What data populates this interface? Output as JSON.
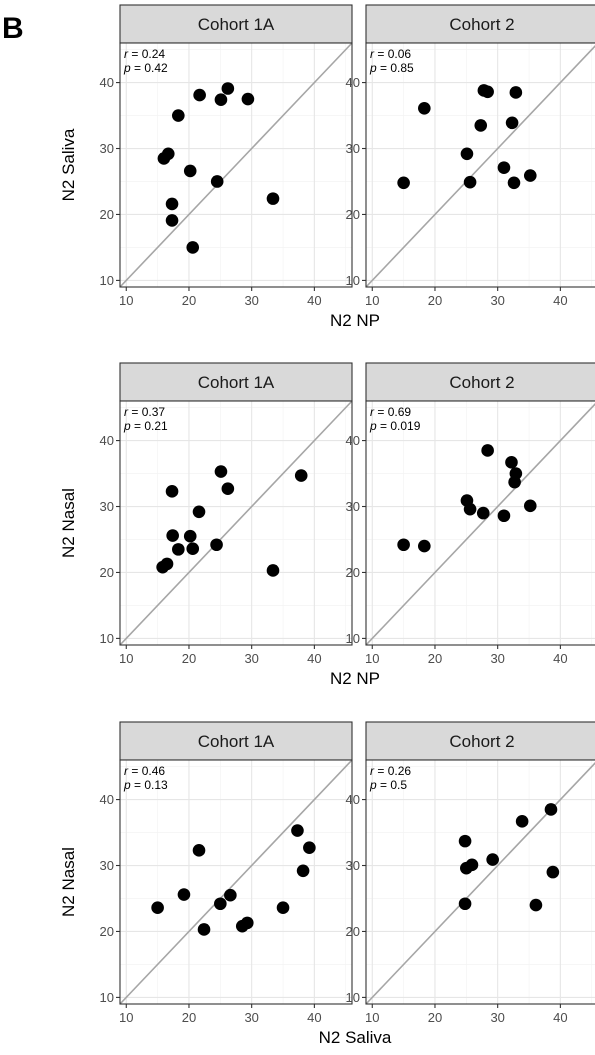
{
  "panel_letter": "B",
  "chart_data": [
    {
      "type": "scatter",
      "row": 1,
      "column": 1,
      "strip": "Cohort 1A",
      "stat_r_label": "r",
      "r": "0.24",
      "stat_p_label": "p",
      "p": "0.42",
      "xlabel": "N2 NP",
      "ylabel": "N2 Saliva",
      "xlim": [
        9,
        46
      ],
      "ylim": [
        9,
        46
      ],
      "xticks": [
        10,
        20,
        30,
        40
      ],
      "yticks": [
        10,
        20,
        30,
        40
      ],
      "reference_line": "y = x",
      "points": [
        [
          16,
          28.5
        ],
        [
          16.7,
          29.2
        ],
        [
          17.3,
          21.6
        ],
        [
          17.3,
          19.1
        ],
        [
          18.3,
          35
        ],
        [
          20.2,
          26.6
        ],
        [
          20.6,
          15
        ],
        [
          21.7,
          38.1
        ],
        [
          24.5,
          25
        ],
        [
          25.1,
          37.4
        ],
        [
          26.2,
          39.1
        ],
        [
          29.4,
          37.5
        ],
        [
          33.4,
          22.4
        ]
      ]
    },
    {
      "type": "scatter",
      "row": 1,
      "column": 2,
      "strip": "Cohort 2",
      "stat_r_label": "r",
      "r": "0.06",
      "stat_p_label": "p",
      "p": "0.85",
      "xlabel": "N2 NP",
      "ylabel": "N2 Saliva",
      "xlim": [
        9,
        46
      ],
      "ylim": [
        9,
        46
      ],
      "xticks": [
        10,
        20,
        30,
        40
      ],
      "yticks": [
        10,
        20,
        30,
        40
      ],
      "reference_line": "y = x",
      "points": [
        [
          15,
          24.8
        ],
        [
          18.3,
          36.1
        ],
        [
          25.1,
          29.2
        ],
        [
          25.6,
          24.9
        ],
        [
          27.3,
          33.5
        ],
        [
          27.8,
          38.8
        ],
        [
          28.4,
          38.6
        ],
        [
          31,
          27.1
        ],
        [
          32.3,
          33.9
        ],
        [
          32.6,
          24.8
        ],
        [
          32.9,
          38.5
        ],
        [
          35.2,
          25.9
        ]
      ]
    },
    {
      "type": "scatter",
      "row": 2,
      "column": 1,
      "strip": "Cohort 1A",
      "stat_r_label": "r",
      "r": "0.37",
      "stat_p_label": "p",
      "p": "0.21",
      "xlabel": "N2 NP",
      "ylabel": "N2 Nasal",
      "xlim": [
        9,
        46
      ],
      "ylim": [
        9,
        46
      ],
      "xticks": [
        10,
        20,
        30,
        40
      ],
      "yticks": [
        10,
        20,
        30,
        40
      ],
      "reference_line": "y = x",
      "points": [
        [
          15.8,
          20.8
        ],
        [
          16.5,
          21.3
        ],
        [
          17.3,
          32.3
        ],
        [
          17.4,
          25.6
        ],
        [
          18.3,
          23.5
        ],
        [
          20.2,
          25.5
        ],
        [
          20.6,
          23.6
        ],
        [
          21.6,
          29.2
        ],
        [
          24.4,
          24.2
        ],
        [
          25.1,
          35.3
        ],
        [
          26.2,
          32.7
        ],
        [
          33.4,
          20.3
        ],
        [
          37.9,
          34.7
        ]
      ]
    },
    {
      "type": "scatter",
      "row": 2,
      "column": 2,
      "strip": "Cohort 2",
      "stat_r_label": "r",
      "r": "0.69",
      "stat_p_label": "p",
      "p": "0.019",
      "xlabel": "N2 NP",
      "ylabel": "N2 Nasal",
      "xlim": [
        9,
        46
      ],
      "ylim": [
        9,
        46
      ],
      "xticks": [
        10,
        20,
        30,
        40
      ],
      "yticks": [
        10,
        20,
        30,
        40
      ],
      "reference_line": "y = x",
      "points": [
        [
          15,
          24.2
        ],
        [
          18.3,
          24
        ],
        [
          25.1,
          30.9
        ],
        [
          25.6,
          29.6
        ],
        [
          27.7,
          29
        ],
        [
          28.4,
          38.5
        ],
        [
          31,
          28.6
        ],
        [
          32.2,
          36.7
        ],
        [
          32.7,
          33.7
        ],
        [
          32.9,
          35
        ],
        [
          35.2,
          30.1
        ]
      ]
    },
    {
      "type": "scatter",
      "row": 3,
      "column": 1,
      "strip": "Cohort 1A",
      "stat_r_label": "r",
      "r": "0.46",
      "stat_p_label": "p",
      "p": "0.13",
      "xlabel": "N2 Saliva",
      "ylabel": "N2 Nasal",
      "xlim": [
        9,
        46
      ],
      "ylim": [
        9,
        46
      ],
      "xticks": [
        10,
        20,
        30,
        40
      ],
      "yticks": [
        10,
        20,
        30,
        40
      ],
      "reference_line": "y = x",
      "points": [
        [
          15,
          23.6
        ],
        [
          19.2,
          25.6
        ],
        [
          21.6,
          32.3
        ],
        [
          22.4,
          20.3
        ],
        [
          25,
          24.2
        ],
        [
          26.6,
          25.5
        ],
        [
          28.5,
          20.8
        ],
        [
          29.3,
          21.3
        ],
        [
          35,
          23.6
        ],
        [
          37.3,
          35.3
        ],
        [
          38.2,
          29.2
        ],
        [
          39.2,
          32.7
        ]
      ]
    },
    {
      "type": "scatter",
      "row": 3,
      "column": 2,
      "strip": "Cohort 2",
      "stat_r_label": "r",
      "r": "0.26",
      "stat_p_label": "p",
      "p": "0.5",
      "xlabel": "N2 Saliva",
      "ylabel": "N2 Nasal",
      "xlim": [
        9,
        46
      ],
      "ylim": [
        9,
        46
      ],
      "xticks": [
        10,
        20,
        30,
        40
      ],
      "yticks": [
        10,
        20,
        30,
        40
      ],
      "reference_line": "y = x",
      "points": [
        [
          24.8,
          33.7
        ],
        [
          24.8,
          24.2
        ],
        [
          25,
          29.6
        ],
        [
          25.9,
          30.1
        ],
        [
          29.2,
          30.9
        ],
        [
          33.9,
          36.7
        ],
        [
          36.1,
          24
        ],
        [
          38.5,
          38.5
        ],
        [
          38.8,
          29
        ]
      ]
    }
  ]
}
